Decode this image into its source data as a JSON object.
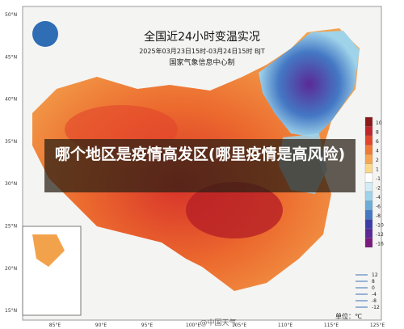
{
  "header": {
    "title": "全国近24小时变温实况",
    "subtitle": "2025年03月23日15时-03月24日15时 BJT",
    "agency": "国家气象信息中心制"
  },
  "caption": "哪个地区是疫情高发区(哪里疫情是高风险)",
  "lat_labels": [
    "50°N",
    "45°N",
    "40°N",
    "35°N",
    "30°N",
    "25°N",
    "20°N",
    "15°N"
  ],
  "lon_labels": [
    "85°E",
    "90°E",
    "95°E",
    "100°E",
    "105°E",
    "110°E",
    "115°E",
    "125°E"
  ],
  "legend": {
    "labels": [
      "10",
      "8",
      "6",
      "4",
      "2",
      "1",
      "-1",
      "-2",
      "-4",
      "-6",
      "-8",
      "-10",
      "-12",
      "-16"
    ],
    "colors": [
      "#8c1a1a",
      "#c0252a",
      "#e2452c",
      "#f07a35",
      "#f6a653",
      "#fbd98a",
      "#ffffff",
      "#d3ecf5",
      "#9fd3ea",
      "#6aaed8",
      "#4478c4",
      "#3c3ea8",
      "#5a2a96",
      "#7a1b7e"
    ],
    "unit": "单位：℃"
  },
  "line_legend": [
    "12",
    "8",
    "0",
    "-4",
    "-8",
    "-12"
  ],
  "watermark": "@中国天气"
}
